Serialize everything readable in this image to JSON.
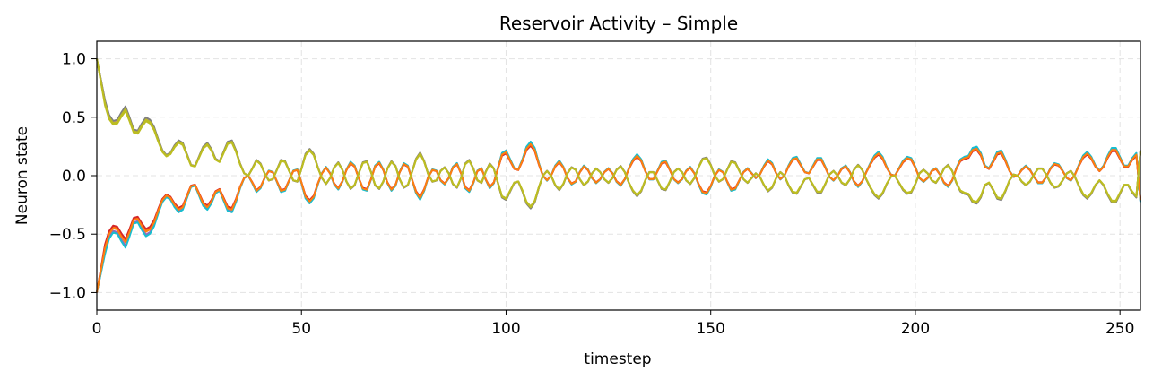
{
  "chart_data": {
    "type": "line",
    "title": "Reservoir Activity – Simple",
    "xlabel": "timestep",
    "ylabel": "Neuron state",
    "xlim": [
      0,
      255
    ],
    "ylim": [
      -1.15,
      1.15
    ],
    "xticks": [
      0,
      50,
      100,
      150,
      200,
      250
    ],
    "yticks": [
      1.0,
      0.5,
      0.0,
      -0.5,
      -1.0
    ],
    "ytick_labels": [
      "1.0",
      "0.5",
      "0.0",
      "−0.5",
      "−1.0"
    ],
    "grid": true,
    "legend": "none",
    "x_step": 1,
    "series": [
      {
        "color": "#1f77b4",
        "gain": 1.06,
        "sign": -1,
        "values_basis": "envelope"
      },
      {
        "color": "#ff7f0e",
        "gain": 0.98,
        "sign": -1,
        "values_basis": "envelope"
      },
      {
        "color": "#2ca02c",
        "gain": 1.0,
        "sign": 1,
        "values_basis": "envelope"
      },
      {
        "color": "#d62728",
        "gain": 0.95,
        "sign": -1,
        "values_basis": "envelope"
      },
      {
        "color": "#9467bd",
        "gain": 1.05,
        "sign": -1,
        "values_basis": "envelope"
      },
      {
        "color": "#8c564b",
        "gain": 1.03,
        "sign": 1,
        "values_basis": "envelope"
      },
      {
        "color": "#e377c2",
        "gain": 1.01,
        "sign": 1,
        "values_basis": "envelope"
      },
      {
        "color": "#7f7f7f",
        "gain": 1.04,
        "sign": 1,
        "values_basis": "envelope"
      },
      {
        "color": "#bcbd22",
        "gain": 0.97,
        "sign": 1,
        "values_basis": "envelope"
      },
      {
        "color": "#17becf",
        "gain": 1.08,
        "sign": -1,
        "values_basis": "envelope"
      },
      {
        "color": "#ff7f0e",
        "gain": 1.0,
        "sign": -1,
        "values_basis": "envelope"
      },
      {
        "color": "#bcbd22",
        "gain": 1.0,
        "sign": 1,
        "values_basis": "envelope"
      }
    ],
    "envelope_keypoints": [
      [
        0,
        1.0
      ],
      [
        2,
        0.62
      ],
      [
        3,
        0.5
      ],
      [
        4,
        0.45
      ],
      [
        5,
        0.46
      ],
      [
        6,
        0.52
      ],
      [
        7,
        0.57
      ],
      [
        8,
        0.48
      ],
      [
        9,
        0.38
      ],
      [
        10,
        0.37
      ],
      [
        11,
        0.43
      ],
      [
        12,
        0.48
      ],
      [
        13,
        0.46
      ],
      [
        14,
        0.4
      ],
      [
        15,
        0.3
      ],
      [
        16,
        0.21
      ],
      [
        17,
        0.17
      ],
      [
        18,
        0.19
      ],
      [
        19,
        0.25
      ],
      [
        20,
        0.29
      ],
      [
        21,
        0.27
      ],
      [
        22,
        0.18
      ],
      [
        23,
        0.09
      ],
      [
        24,
        0.08
      ],
      [
        25,
        0.16
      ],
      [
        26,
        0.24
      ],
      [
        27,
        0.27
      ],
      [
        28,
        0.22
      ],
      [
        29,
        0.14
      ],
      [
        30,
        0.12
      ],
      [
        31,
        0.2
      ],
      [
        32,
        0.28
      ],
      [
        33,
        0.29
      ],
      [
        34,
        0.21
      ],
      [
        35,
        0.1
      ],
      [
        36,
        0.02
      ],
      [
        37,
        0.0
      ],
      [
        38,
        0.06
      ],
      [
        39,
        0.13
      ],
      [
        40,
        0.1
      ],
      [
        41,
        0.02
      ],
      [
        42,
        -0.04
      ],
      [
        43,
        -0.03
      ],
      [
        44,
        0.05
      ],
      [
        45,
        0.13
      ],
      [
        46,
        0.12
      ],
      [
        47,
        0.04
      ],
      [
        48,
        -0.04
      ],
      [
        49,
        -0.05
      ],
      [
        50,
        0.06
      ],
      [
        51,
        0.18
      ],
      [
        52,
        0.22
      ],
      [
        53,
        0.18
      ],
      [
        54,
        0.07
      ],
      [
        55,
        -0.02
      ],
      [
        56,
        -0.07
      ],
      [
        57,
        -0.02
      ],
      [
        58,
        0.07
      ],
      [
        59,
        0.11
      ],
      [
        60,
        0.05
      ],
      [
        61,
        -0.05
      ],
      [
        62,
        -0.11
      ],
      [
        63,
        -0.08
      ],
      [
        64,
        0.02
      ],
      [
        65,
        0.11
      ],
      [
        66,
        0.12
      ],
      [
        67,
        0.03
      ],
      [
        68,
        -0.08
      ],
      [
        69,
        -0.11
      ],
      [
        70,
        -0.05
      ],
      [
        71,
        0.06
      ],
      [
        72,
        0.12
      ],
      [
        73,
        0.08
      ],
      [
        74,
        -0.03
      ],
      [
        75,
        -0.1
      ],
      [
        76,
        -0.08
      ],
      [
        77,
        0.03
      ],
      [
        78,
        0.14
      ],
      [
        79,
        0.19
      ],
      [
        80,
        0.12
      ],
      [
        81,
        0.01
      ],
      [
        82,
        -0.05
      ],
      [
        83,
        -0.04
      ],
      [
        84,
        0.04
      ],
      [
        85,
        0.07
      ],
      [
        86,
        0.02
      ],
      [
        87,
        -0.07
      ],
      [
        88,
        -0.1
      ],
      [
        89,
        -0.02
      ],
      [
        90,
        0.1
      ],
      [
        91,
        0.13
      ],
      [
        92,
        0.06
      ],
      [
        93,
        -0.04
      ],
      [
        94,
        -0.06
      ],
      [
        95,
        0.03
      ],
      [
        96,
        0.1
      ],
      [
        97,
        0.06
      ],
      [
        98,
        -0.06
      ],
      [
        99,
        -0.18
      ],
      [
        100,
        -0.2
      ],
      [
        101,
        -0.13
      ],
      [
        102,
        -0.06
      ],
      [
        103,
        -0.05
      ],
      [
        104,
        -0.13
      ],
      [
        105,
        -0.23
      ],
      [
        106,
        -0.27
      ],
      [
        107,
        -0.22
      ],
      [
        108,
        -0.1
      ],
      [
        109,
        0.0
      ],
      [
        110,
        0.04
      ],
      [
        111,
        0.0
      ],
      [
        112,
        -0.08
      ],
      [
        113,
        -0.12
      ],
      [
        114,
        -0.07
      ],
      [
        115,
        0.02
      ],
      [
        116,
        0.07
      ],
      [
        117,
        0.05
      ],
      [
        118,
        -0.03
      ],
      [
        119,
        -0.08
      ],
      [
        120,
        -0.05
      ],
      [
        121,
        0.02
      ],
      [
        122,
        0.06
      ],
      [
        123,
        0.03
      ],
      [
        124,
        -0.03
      ],
      [
        125,
        -0.06
      ],
      [
        126,
        -0.02
      ],
      [
        127,
        0.05
      ],
      [
        128,
        0.08
      ],
      [
        129,
        0.03
      ],
      [
        130,
        -0.06
      ],
      [
        131,
        -0.13
      ],
      [
        132,
        -0.17
      ],
      [
        133,
        -0.13
      ],
      [
        134,
        -0.04
      ],
      [
        135,
        0.03
      ],
      [
        136,
        0.03
      ],
      [
        137,
        -0.04
      ],
      [
        138,
        -0.11
      ],
      [
        139,
        -0.12
      ],
      [
        140,
        -0.05
      ],
      [
        141,
        0.03
      ],
      [
        142,
        0.06
      ],
      [
        143,
        0.03
      ],
      [
        144,
        -0.04
      ],
      [
        145,
        -0.07
      ],
      [
        146,
        -0.02
      ],
      [
        147,
        0.07
      ],
      [
        148,
        0.14
      ],
      [
        149,
        0.15
      ],
      [
        150,
        0.09
      ],
      [
        151,
        0.0
      ],
      [
        152,
        -0.05
      ],
      [
        153,
        -0.03
      ],
      [
        154,
        0.05
      ],
      [
        155,
        0.12
      ],
      [
        156,
        0.11
      ],
      [
        157,
        0.04
      ],
      [
        158,
        -0.03
      ],
      [
        159,
        -0.06
      ],
      [
        160,
        -0.02
      ],
      [
        161,
        0.02
      ],
      [
        162,
        -0.01
      ],
      [
        163,
        -0.08
      ],
      [
        164,
        -0.13
      ],
      [
        165,
        -0.1
      ],
      [
        166,
        -0.02
      ],
      [
        167,
        0.03
      ],
      [
        168,
        0.0
      ],
      [
        169,
        -0.08
      ],
      [
        170,
        -0.14
      ],
      [
        171,
        -0.15
      ],
      [
        172,
        -0.09
      ],
      [
        173,
        -0.03
      ],
      [
        174,
        -0.02
      ],
      [
        175,
        -0.08
      ],
      [
        176,
        -0.14
      ],
      [
        177,
        -0.14
      ],
      [
        178,
        -0.07
      ],
      [
        179,
        0.01
      ],
      [
        180,
        0.04
      ],
      [
        181,
        0.0
      ],
      [
        182,
        -0.06
      ],
      [
        183,
        -0.08
      ],
      [
        184,
        -0.03
      ],
      [
        185,
        0.05
      ],
      [
        186,
        0.09
      ],
      [
        187,
        0.05
      ],
      [
        188,
        -0.03
      ],
      [
        189,
        -0.1
      ],
      [
        190,
        -0.16
      ],
      [
        191,
        -0.19
      ],
      [
        192,
        -0.15
      ],
      [
        193,
        -0.07
      ],
      [
        194,
        -0.01
      ],
      [
        195,
        0.0
      ],
      [
        196,
        -0.06
      ],
      [
        197,
        -0.12
      ],
      [
        198,
        -0.15
      ],
      [
        199,
        -0.14
      ],
      [
        200,
        -0.07
      ],
      [
        201,
        0.02
      ],
      [
        202,
        0.05
      ],
      [
        203,
        0.02
      ],
      [
        204,
        -0.04
      ],
      [
        205,
        -0.06
      ],
      [
        206,
        -0.01
      ],
      [
        207,
        0.06
      ],
      [
        208,
        0.09
      ],
      [
        209,
        0.04
      ],
      [
        210,
        -0.06
      ],
      [
        211,
        -0.13
      ],
      [
        212,
        -0.15
      ],
      [
        213,
        -0.16
      ],
      [
        214,
        -0.22
      ],
      [
        215,
        -0.23
      ],
      [
        216,
        -0.18
      ],
      [
        217,
        -0.08
      ],
      [
        218,
        -0.06
      ],
      [
        219,
        -0.12
      ],
      [
        220,
        -0.19
      ],
      [
        221,
        -0.2
      ],
      [
        222,
        -0.13
      ],
      [
        223,
        -0.04
      ],
      [
        224,
        0.01
      ],
      [
        225,
        0.0
      ],
      [
        226,
        -0.05
      ],
      [
        227,
        -0.08
      ],
      [
        228,
        -0.05
      ],
      [
        229,
        0.01
      ],
      [
        230,
        0.06
      ],
      [
        231,
        0.06
      ],
      [
        232,
        0.01
      ],
      [
        233,
        -0.06
      ],
      [
        234,
        -0.1
      ],
      [
        235,
        -0.09
      ],
      [
        236,
        -0.04
      ],
      [
        237,
        0.02
      ],
      [
        238,
        0.04
      ],
      [
        239,
        -0.01
      ],
      [
        240,
        -0.09
      ],
      [
        241,
        -0.16
      ],
      [
        242,
        -0.19
      ],
      [
        243,
        -0.15
      ],
      [
        244,
        -0.08
      ],
      [
        245,
        -0.04
      ],
      [
        246,
        -0.08
      ],
      [
        247,
        -0.16
      ],
      [
        248,
        -0.22
      ],
      [
        249,
        -0.22
      ],
      [
        250,
        -0.15
      ],
      [
        251,
        -0.08
      ],
      [
        252,
        -0.08
      ],
      [
        253,
        -0.14
      ],
      [
        254,
        -0.18
      ],
      [
        255,
        0.21
      ]
    ]
  }
}
